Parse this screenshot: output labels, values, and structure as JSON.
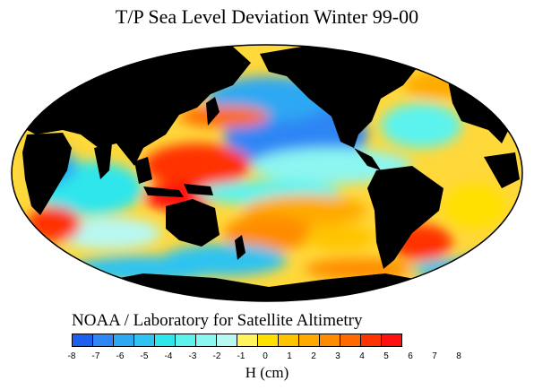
{
  "title": "T/P Sea Level Deviation Winter 99-00",
  "credit": "NOAA / Laboratory for Satellite Altimetry",
  "colorbar": {
    "unit_label": "H (cm)",
    "tick_labels": [
      "-8",
      "-7",
      "-6",
      "-5",
      "-4",
      "-3",
      "-2",
      "-1",
      "0",
      "1",
      "2",
      "3",
      "4",
      "5",
      "6",
      "7",
      "8"
    ],
    "colors": [
      "#1f5ff0",
      "#2f86f5",
      "#2ea8f2",
      "#2ec3f0",
      "#2ee6ec",
      "#5cf3ee",
      "#8cf6f0",
      "#b8f8f2",
      "#fff45c",
      "#ffe000",
      "#ffc400",
      "#ffaa00",
      "#ff8c00",
      "#ff6a00",
      "#ff3300",
      "#ff1010"
    ]
  },
  "map": {
    "projection": "Mollweide",
    "land_color": "#000000",
    "ocean_base_color": "#ffd83a",
    "regions": [
      {
        "name": "north-pacific-low",
        "value_cm": -6,
        "color": "#2f86f5"
      },
      {
        "name": "west-pacific-warm-pool-high",
        "value_cm": 7,
        "color": "#ff3300"
      },
      {
        "name": "kuroshio-high",
        "value_cm": 6,
        "color": "#ff6a00"
      },
      {
        "name": "equatorial-pacific-cyan",
        "value_cm": -3,
        "color": "#5cf3ee"
      },
      {
        "name": "south-pacific-warm",
        "value_cm": 5,
        "color": "#ff8c00"
      },
      {
        "name": "indian-ocean-low",
        "value_cm": -4,
        "color": "#2ee6ec"
      },
      {
        "name": "south-atlantic-high",
        "value_cm": 6,
        "color": "#ff6a00"
      },
      {
        "name": "north-atlantic-mixed",
        "value_cm": 2,
        "color": "#ffc400"
      },
      {
        "name": "southern-ocean-low",
        "value_cm": -5,
        "color": "#2ec3f0"
      }
    ]
  }
}
